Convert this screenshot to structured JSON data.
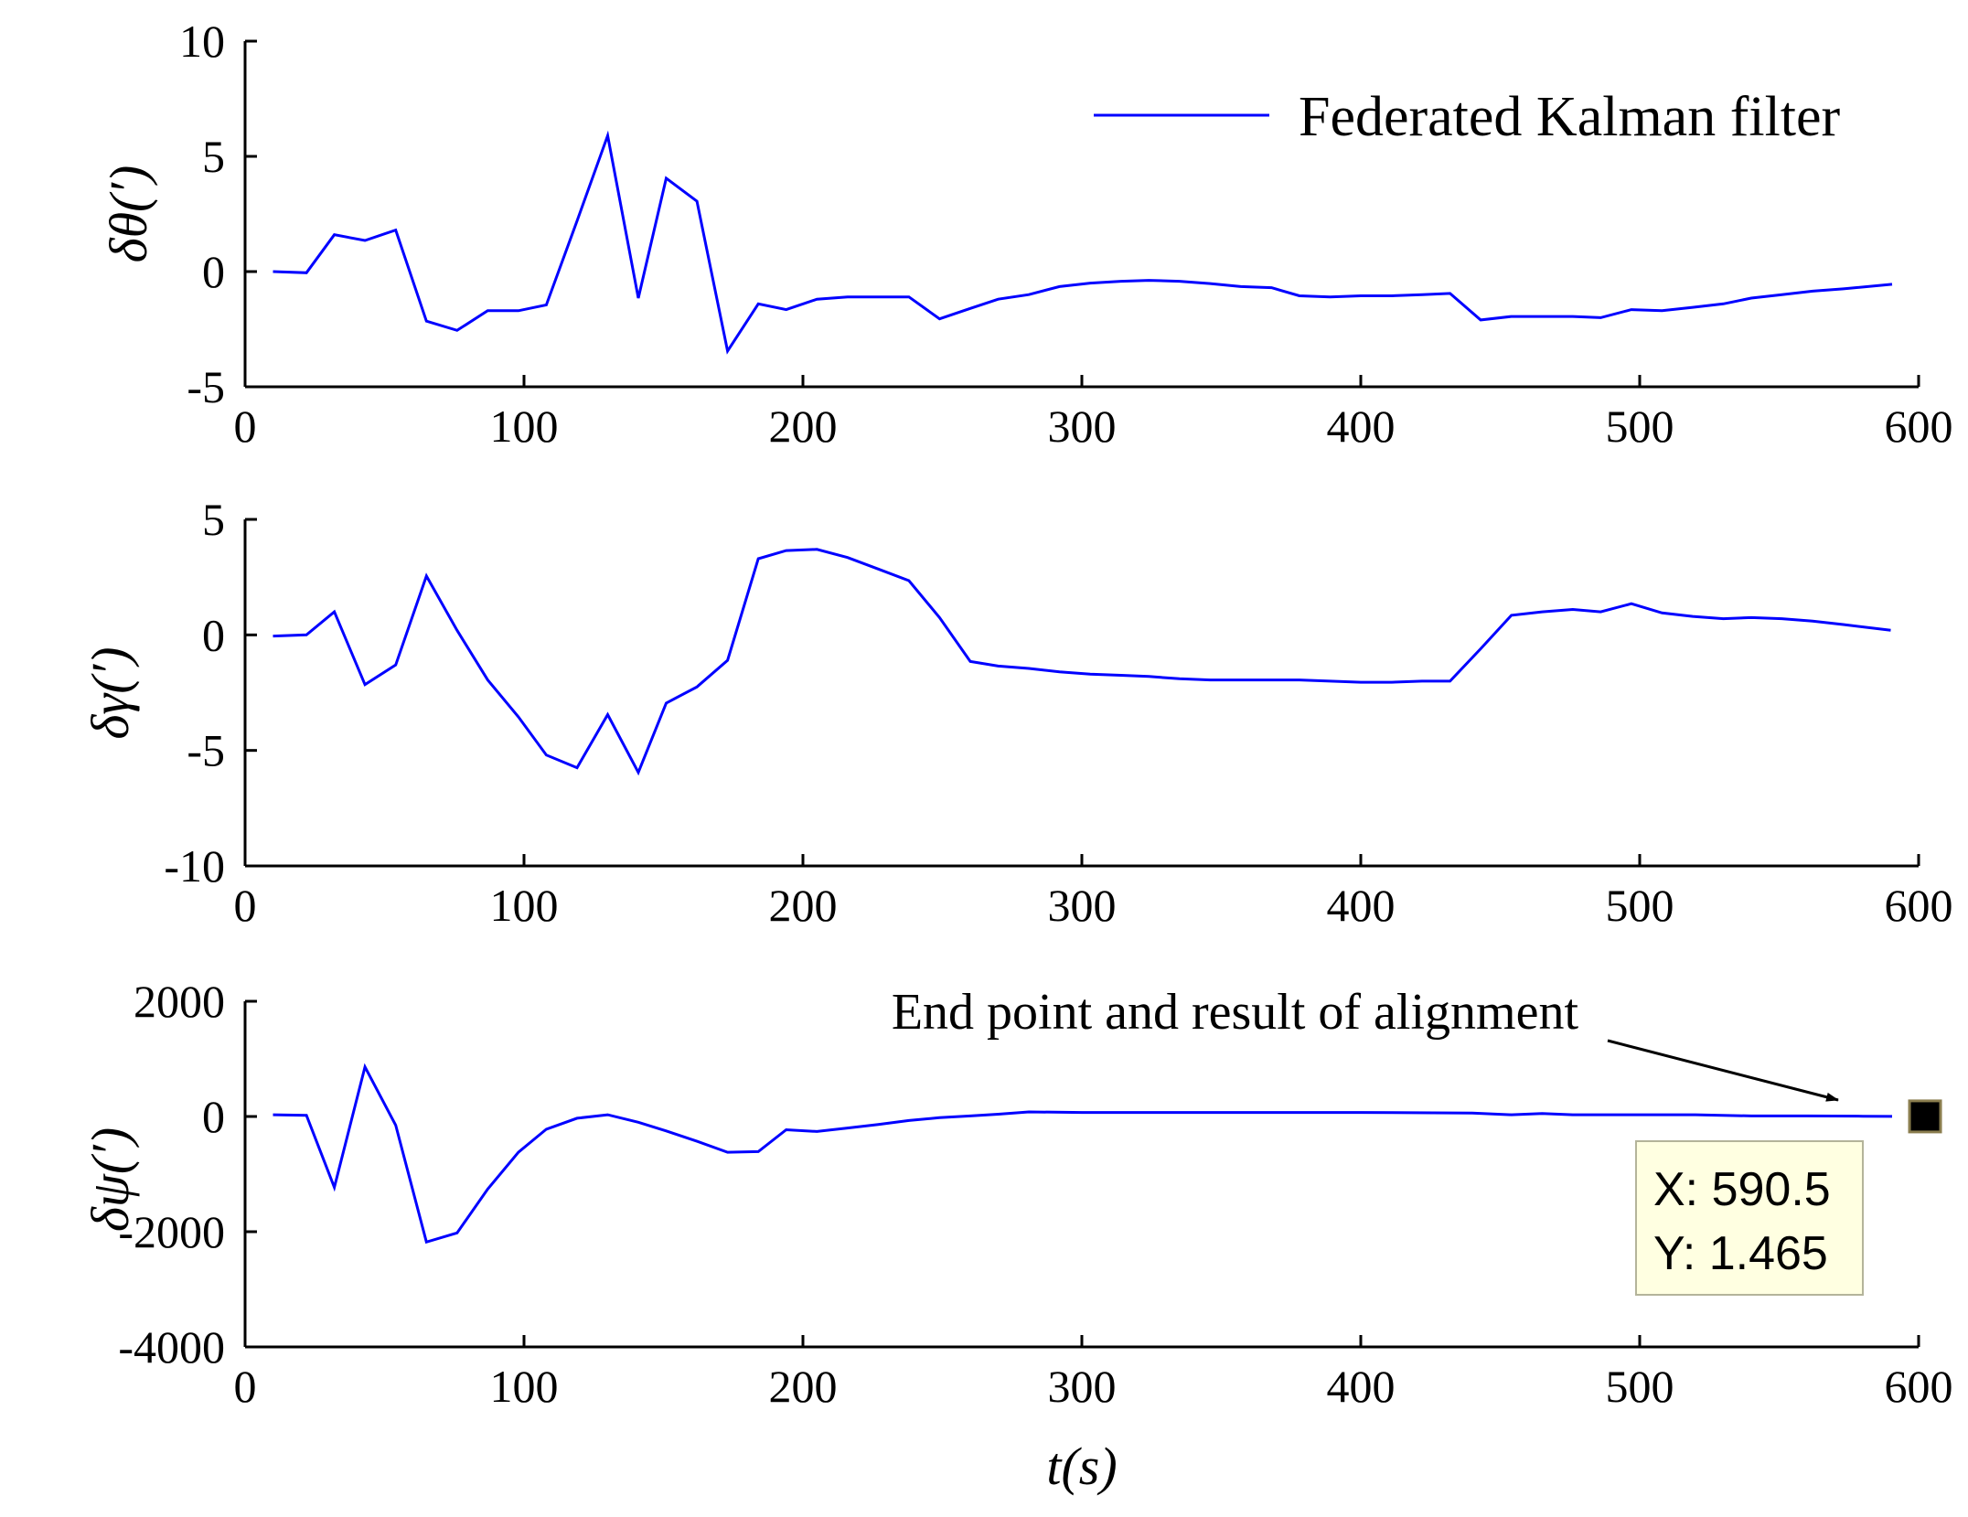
{
  "chart_data": [
    {
      "type": "line",
      "ylabel": "δθ(′)",
      "xlabel": "",
      "xlim": [
        0,
        600
      ],
      "ylim": [
        -5,
        10
      ],
      "xticks": [
        "0",
        "100",
        "200",
        "300",
        "400",
        "500",
        "600"
      ],
      "yticks": [
        "-5",
        "0",
        "5",
        "10"
      ],
      "grid": false,
      "legend": {
        "placement": "top-right",
        "entries": [
          "Federated Kalman filter"
        ]
      },
      "series": [
        {
          "name": "Federated Kalman filter",
          "color": "#0000ff",
          "x": [
            10,
            22,
            32,
            43,
            54,
            65,
            76,
            87,
            98,
            108,
            119,
            130,
            141,
            151,
            162,
            173,
            184,
            194,
            205,
            216,
            227,
            238,
            249,
            260,
            270,
            281,
            292,
            303,
            314,
            324,
            335,
            346,
            357,
            368,
            378,
            389,
            400,
            411,
            422,
            432,
            443,
            454,
            465,
            476,
            486,
            497,
            508,
            519,
            530,
            540,
            551,
            562,
            573,
            590.5
          ],
          "y": [
            0,
            -0.05,
            1.6,
            1.35,
            1.8,
            -2.15,
            -2.55,
            -1.7,
            -1.7,
            -1.45,
            2.2,
            5.9,
            -1.15,
            4.05,
            3.05,
            -3.45,
            -1.4,
            -1.65,
            -1.2,
            -1.1,
            -1.1,
            -1.1,
            -2.05,
            -1.6,
            -1.2,
            -1.0,
            -0.65,
            -0.5,
            -0.42,
            -0.38,
            -0.42,
            -0.52,
            -0.65,
            -0.7,
            -1.05,
            -1.1,
            -1.05,
            -1.05,
            -1.0,
            -0.95,
            -2.1,
            -1.95,
            -1.95,
            -1.95,
            -2.0,
            -1.65,
            -1.7,
            -1.55,
            -1.4,
            -1.15,
            -1.0,
            -0.85,
            -0.75,
            -0.55
          ]
        }
      ]
    },
    {
      "type": "line",
      "ylabel": "δγ(′)",
      "xlabel": "",
      "xlim": [
        0,
        600
      ],
      "ylim": [
        -10,
        5
      ],
      "xticks": [
        "0",
        "100",
        "200",
        "300",
        "400",
        "500",
        "600"
      ],
      "yticks": [
        "-10",
        "-5",
        "0",
        "5"
      ],
      "grid": false,
      "series": [
        {
          "color": "#0000ff",
          "x": [
            10,
            22,
            32,
            43,
            54,
            65,
            76,
            87,
            98,
            108,
            119,
            130,
            141,
            151,
            162,
            173,
            184,
            194,
            205,
            216,
            227,
            238,
            249,
            260,
            270,
            281,
            292,
            303,
            314,
            324,
            335,
            346,
            357,
            368,
            378,
            389,
            400,
            411,
            422,
            432,
            443,
            454,
            465,
            476,
            486,
            497,
            508,
            519,
            530,
            540,
            551,
            562,
            573,
            590
          ],
          "y": [
            -0.05,
            0,
            1.0,
            -2.15,
            -1.3,
            2.55,
            0.2,
            -1.95,
            -3.55,
            -5.2,
            -5.75,
            -3.45,
            -5.95,
            -2.95,
            -2.25,
            -1.1,
            3.3,
            3.65,
            3.7,
            3.35,
            2.85,
            2.35,
            0.75,
            -1.15,
            -1.35,
            -1.45,
            -1.6,
            -1.7,
            -1.75,
            -1.8,
            -1.9,
            -1.95,
            -1.95,
            -1.95,
            -1.95,
            -2.0,
            -2.05,
            -2.05,
            -2.0,
            -2.0,
            -0.6,
            0.85,
            1.0,
            1.1,
            1.0,
            1.35,
            0.95,
            0.8,
            0.7,
            0.75,
            0.7,
            0.6,
            0.45,
            0.2
          ]
        }
      ]
    },
    {
      "type": "line",
      "ylabel": "δψ(′)",
      "xlabel": "t(s)",
      "xlim": [
        0,
        600
      ],
      "ylim": [
        -4000,
        2000
      ],
      "xticks": [
        "0",
        "100",
        "200",
        "300",
        "400",
        "500",
        "600"
      ],
      "yticks": [
        "-4000",
        "-2000",
        "0",
        "2000"
      ],
      "grid": false,
      "series": [
        {
          "color": "#0000ff",
          "x": [
            10,
            22,
            32,
            43,
            54,
            65,
            76,
            87,
            98,
            108,
            119,
            130,
            141,
            151,
            162,
            173,
            184,
            194,
            205,
            216,
            227,
            238,
            249,
            260,
            270,
            281,
            300,
            350,
            400,
            440,
            454,
            465,
            476,
            500,
            520,
            540,
            560,
            580,
            590.5
          ],
          "y": [
            30,
            20,
            -1230,
            860,
            -150,
            -2180,
            -2020,
            -1260,
            -620,
            -220,
            -30,
            30,
            -100,
            -250,
            -430,
            -620,
            -610,
            -230,
            -260,
            -200,
            -140,
            -70,
            -20,
            10,
            40,
            80,
            70,
            70,
            70,
            60,
            30,
            50,
            30,
            30,
            30,
            10,
            10,
            5,
            1.465
          ]
        }
      ],
      "annotations": [
        {
          "text": "End point and result of alignment",
          "type": "arrow"
        }
      ],
      "datatip": {
        "x_text": "X: 590.5",
        "y_text": "Y: 1.465",
        "x": 590.5,
        "y": 1.465
      }
    }
  ]
}
